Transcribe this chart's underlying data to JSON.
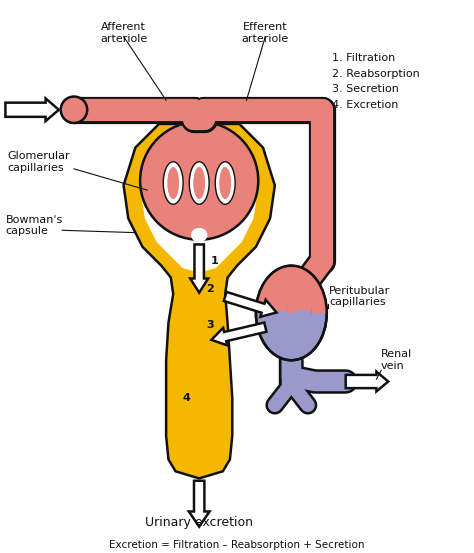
{
  "bg_color": "#ffffff",
  "figsize": [
    4.74,
    5.53
  ],
  "dpi": 100,
  "colors": {
    "pink": "#E8827A",
    "yellow": "#F5B800",
    "blue": "#9999CC",
    "blue2": "#AAAADD",
    "black": "#111111",
    "white": "#ffffff"
  },
  "labels": {
    "afferent": "Afferent\narteriole",
    "efferent": "Efferent\narteriole",
    "glomerular": "Glomerular\ncapillaries",
    "bowman": "Bowman's\ncapsule",
    "peritubular": "Peritubular\ncapillaries",
    "renal_vein": "Renal\nvein",
    "urinary": "Urinary excretion",
    "equation": "Excretion = Filtration – Reabsorption + Secretion",
    "steps": "1. Filtration\n2. Reabsorption\n3. Secretion\n4. Excretion"
  }
}
